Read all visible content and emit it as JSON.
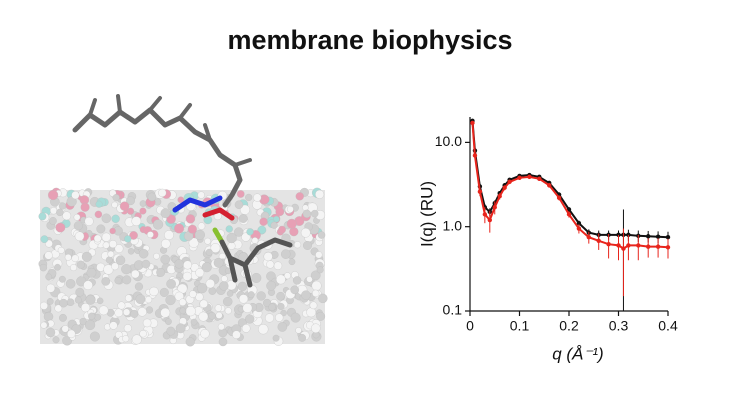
{
  "title": "membrane biophysics",
  "chart_data": {
    "type": "line",
    "log_y": true,
    "xlabel": "q (Å⁻¹)",
    "ylabel": "I(q) (RU)",
    "xlim": [
      0,
      0.4
    ],
    "ylim": [
      0.1,
      20
    ],
    "xticks": [
      0,
      0.1,
      0.2,
      0.3,
      0.4
    ],
    "yticks": [
      0.1,
      {
        "value": 1,
        "label": "1.0"
      },
      {
        "value": 10,
        "label": "10.0"
      }
    ],
    "x": [
      0.005,
      0.01,
      0.02,
      0.03,
      0.04,
      0.05,
      0.06,
      0.07,
      0.08,
      0.1,
      0.12,
      0.14,
      0.16,
      0.18,
      0.2,
      0.22,
      0.24,
      0.26,
      0.28,
      0.3,
      0.31,
      0.32,
      0.34,
      0.36,
      0.38,
      0.4
    ],
    "series": [
      {
        "name": "black",
        "color": "#111111",
        "values": [
          18,
          8,
          3,
          1.7,
          1.5,
          1.9,
          2.5,
          3.1,
          3.6,
          4.0,
          4.1,
          3.9,
          3.3,
          2.4,
          1.6,
          1.1,
          0.85,
          0.8,
          0.8,
          0.8,
          0.8,
          0.8,
          0.78,
          0.77,
          0.76,
          0.75
        ],
        "errors": [
          1,
          0.5,
          0.2,
          0.15,
          0.15,
          0.15,
          0.15,
          0.2,
          0.2,
          0.2,
          0.2,
          0.2,
          0.2,
          0.15,
          0.1,
          0.08,
          0.08,
          0.1,
          0.1,
          0.1,
          0.8,
          0.12,
          0.12,
          0.12,
          0.12,
          0.12
        ]
      },
      {
        "name": "red",
        "color": "#e8241c",
        "values": [
          17,
          7,
          2.6,
          1.4,
          1.2,
          1.7,
          2.3,
          2.9,
          3.4,
          3.8,
          3.9,
          3.7,
          3.1,
          2.2,
          1.4,
          0.95,
          0.75,
          0.68,
          0.62,
          0.6,
          0.55,
          0.6,
          0.6,
          0.58,
          0.58,
          0.57
        ],
        "errors": [
          1,
          0.5,
          0.3,
          0.3,
          0.35,
          0.3,
          0.2,
          0.2,
          0.2,
          0.2,
          0.2,
          0.2,
          0.2,
          0.15,
          0.12,
          0.12,
          0.12,
          0.15,
          0.2,
          0.2,
          0.4,
          0.2,
          0.2,
          0.15,
          0.15,
          0.15
        ]
      }
    ]
  }
}
